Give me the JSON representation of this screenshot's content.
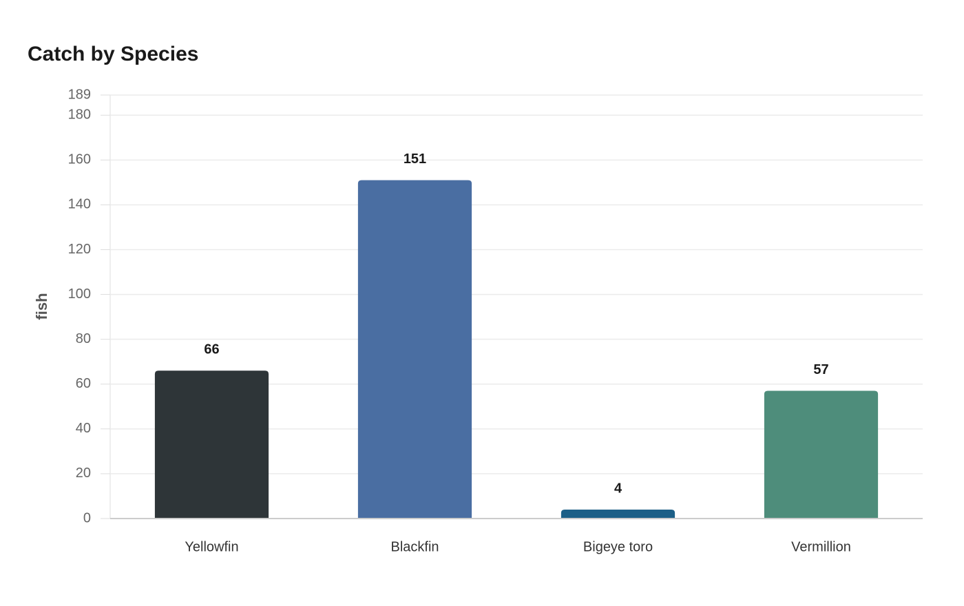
{
  "chart_data": {
    "type": "bar",
    "title": "Catch by Species",
    "y_label": "fish",
    "categories": [
      "Yellowfin",
      "Blackfin",
      "Bigeye toro",
      "Vermillion"
    ],
    "values": [
      66,
      151,
      4,
      57
    ],
    "colors": [
      "#2e3538",
      "#4a6ea2",
      "#1c5f87",
      "#4e8d7b"
    ],
    "ylim": [
      0,
      189
    ],
    "yticks": [
      0,
      20,
      40,
      60,
      80,
      100,
      120,
      140,
      160,
      180,
      189
    ],
    "grid": true
  }
}
